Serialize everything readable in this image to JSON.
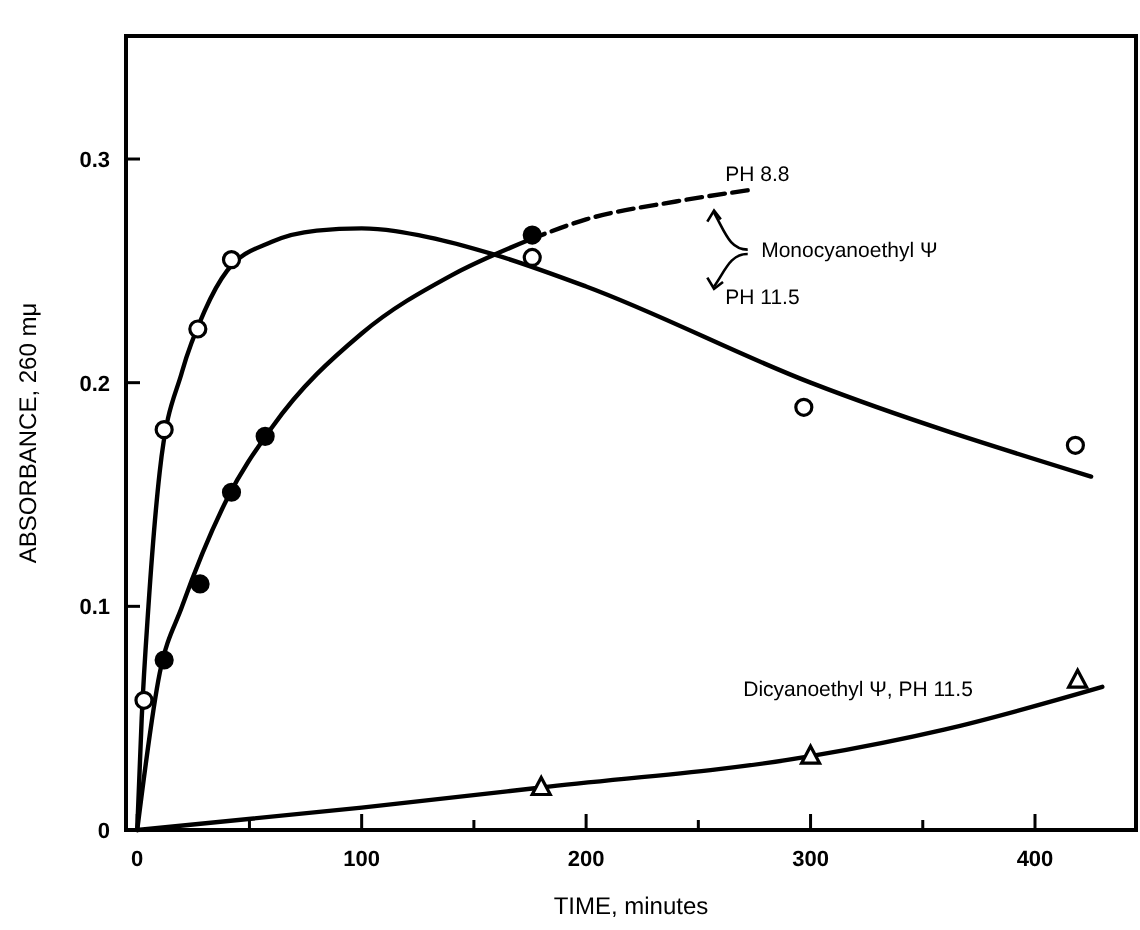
{
  "chart_data": {
    "type": "scatter",
    "xlabel": "TIME, minutes",
    "ylabel": "ABSORBANCE, 260 mμ",
    "xlim": [
      -5,
      445
    ],
    "ylim": [
      0,
      0.355
    ],
    "xticks": [
      0,
      {
        "value": 50,
        "label": null
      },
      100,
      {
        "value": 150,
        "label": null
      },
      200,
      {
        "value": 250,
        "label": null
      },
      300,
      {
        "value": 350,
        "label": null
      },
      400
    ],
    "yticks": [
      0,
      0.1,
      0.2,
      0.3
    ],
    "grid": false,
    "series": [
      {
        "type": "line",
        "color": "#000000",
        "marker": "none",
        "line_style": "solid",
        "x": [
          0,
          2,
          5,
          10,
          20,
          30,
          40,
          60,
          80,
          100,
          130,
          160,
          200,
          300,
          425
        ],
        "values": [
          0,
          0.05,
          0.1,
          0.16,
          0.205,
          0.232,
          0.25,
          0.263,
          0.268,
          0.269,
          0.265,
          0.257,
          0.243,
          0.2,
          0.158
        ]
      },
      {
        "type": "line",
        "color": "#000000",
        "marker": "none",
        "line_style": "solid",
        "x": [
          0,
          10,
          20,
          40,
          60,
          100,
          140,
          175
        ],
        "values": [
          0,
          0.07,
          0.1,
          0.148,
          0.18,
          0.222,
          0.248,
          0.264
        ]
      },
      {
        "type": "line",
        "color": "#000000",
        "marker": "none",
        "line_style": "dashed",
        "x": [
          175,
          200,
          240,
          272
        ],
        "values": [
          0.264,
          0.273,
          0.281,
          0.286
        ]
      },
      {
        "type": "line",
        "color": "#000000",
        "marker": "none",
        "line_style": "solid",
        "x": [
          0,
          100,
          180,
          300,
          360,
          430
        ],
        "values": [
          0,
          0.01,
          0.019,
          0.033,
          0.045,
          0.064
        ]
      },
      {
        "color": "#ffffff",
        "marker": "circle",
        "x": [
          3,
          12,
          27,
          42,
          176,
          297,
          418
        ],
        "values": [
          0.058,
          0.179,
          0.224,
          0.255,
          0.256,
          0.189,
          0.172
        ]
      },
      {
        "color": "#000000",
        "marker": "circle",
        "x": [
          12,
          28,
          42,
          57,
          176
        ],
        "values": [
          0.076,
          0.11,
          0.151,
          0.176,
          0.266
        ]
      },
      {
        "color": "#ffffff",
        "marker": "triangle",
        "x": [
          180,
          300,
          419
        ],
        "values": [
          0.019,
          0.033,
          0.067
        ]
      }
    ],
    "annotations": [
      "PH 8.8",
      "Monocyanoethyl Ψ",
      "PH 11.5",
      "Dicyanoethyl Ψ, PH 11.5"
    ]
  }
}
